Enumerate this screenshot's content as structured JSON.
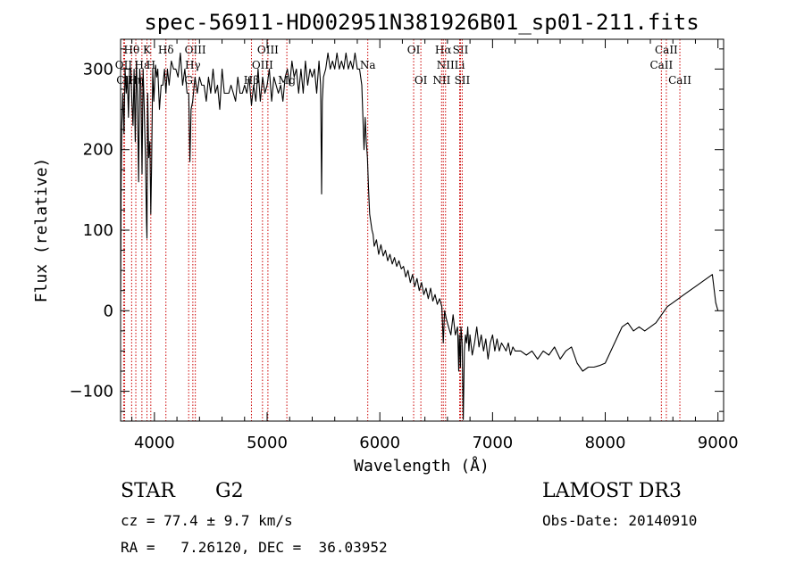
{
  "chart_data": {
    "type": "line",
    "title": "spec-56911-HD002951N381926B01_sp01-211.fits",
    "xlabel": "Wavelength (Å)",
    "ylabel": "Flux (relative)",
    "xlim": [
      3700,
      9050
    ],
    "ylim": [
      -137,
      337
    ],
    "xticks": [
      4000,
      5000,
      6000,
      7000,
      8000,
      9000
    ],
    "yticks": [
      -100,
      0,
      100,
      200,
      300
    ],
    "grid": false,
    "legend": "none",
    "series": [
      {
        "x": [
          3700,
          3705,
          3710,
          3720,
          3730,
          3740,
          3750,
          3760,
          3770,
          3780,
          3790,
          3800,
          3810,
          3820,
          3830,
          3840,
          3850,
          3860,
          3870,
          3880,
          3890,
          3900,
          3910,
          3920,
          3930,
          3934,
          3940,
          3950,
          3960,
          3968,
          3975,
          3985,
          3995,
          4010,
          4020,
          4030,
          4045,
          4060,
          4075,
          4090,
          4102,
          4115,
          4130,
          4150,
          4170,
          4190,
          4210,
          4230,
          4250,
          4270,
          4290,
          4305,
          4315,
          4325,
          4340,
          4360,
          4380,
          4400,
          4420,
          4440,
          4460,
          4480,
          4500,
          4520,
          4540,
          4560,
          4580,
          4600,
          4620,
          4640,
          4660,
          4680,
          4700,
          4720,
          4740,
          4760,
          4780,
          4800,
          4820,
          4840,
          4861,
          4880,
          4900,
          4920,
          4940,
          4960,
          4980,
          5000,
          5020,
          5040,
          5060,
          5080,
          5100,
          5120,
          5140,
          5160,
          5180,
          5200,
          5220,
          5240,
          5260,
          5280,
          5300,
          5320,
          5340,
          5360,
          5380,
          5400,
          5420,
          5440,
          5460,
          5475,
          5483,
          5490,
          5500,
          5520,
          5540,
          5560,
          5580,
          5600,
          5620,
          5640,
          5660,
          5680,
          5700,
          5720,
          5740,
          5760,
          5780,
          5800,
          5820,
          5840,
          5860,
          5870,
          5880,
          5890,
          5900,
          5910,
          5920,
          5930,
          5940,
          5950,
          5970,
          5990,
          6010,
          6030,
          6050,
          6070,
          6090,
          6110,
          6130,
          6150,
          6170,
          6190,
          6210,
          6230,
          6250,
          6270,
          6290,
          6310,
          6330,
          6350,
          6370,
          6390,
          6410,
          6430,
          6450,
          6470,
          6490,
          6510,
          6530,
          6550,
          6563,
          6575,
          6590,
          6610,
          6630,
          6650,
          6670,
          6690,
          6700,
          6705,
          6710,
          6715,
          6720,
          6730,
          6740,
          6750,
          6760,
          6770,
          6780,
          6790,
          6800,
          6820,
          6840,
          6860,
          6880,
          6900,
          6920,
          6940,
          6960,
          6980,
          7000,
          7020,
          7040,
          7060,
          7080,
          7100,
          7120,
          7140,
          7160,
          7180,
          7200,
          7250,
          7300,
          7350,
          7400,
          7450,
          7500,
          7550,
          7600,
          7650,
          7700,
          7750,
          7800,
          7850,
          7900,
          7950,
          8000,
          8050,
          8100,
          8150,
          8200,
          8250,
          8300,
          8350,
          8400,
          8450,
          8500,
          8550,
          8600,
          8650,
          8700,
          8750,
          8800,
          8850,
          8900,
          8950,
          8980,
          9000
        ],
        "y": [
          0,
          160,
          230,
          270,
          220,
          300,
          270,
          290,
          240,
          300,
          300,
          260,
          230,
          300,
          210,
          310,
          260,
          160,
          300,
          280,
          170,
          300,
          250,
          190,
          110,
          90,
          270,
          190,
          210,
          120,
          180,
          300,
          260,
          305,
          290,
          300,
          250,
          280,
          280,
          300,
          270,
          300,
          280,
          310,
          300,
          300,
          290,
          320,
          280,
          300,
          270,
          270,
          185,
          250,
          260,
          290,
          270,
          290,
          280,
          280,
          260,
          290,
          270,
          300,
          270,
          280,
          250,
          300,
          270,
          270,
          270,
          280,
          270,
          260,
          290,
          270,
          270,
          280,
          270,
          290,
          255,
          280,
          260,
          300,
          260,
          290,
          270,
          280,
          300,
          260,
          290,
          280,
          270,
          280,
          260,
          290,
          300,
          280,
          310,
          290,
          300,
          270,
          300,
          270,
          310,
          280,
          300,
          290,
          300,
          270,
          310,
          280,
          145,
          260,
          290,
          300,
          320,
          300,
          310,
          300,
          320,
          300,
          310,
          300,
          320,
          300,
          310,
          300,
          320,
          300,
          300,
          280,
          200,
          240,
          210,
          190,
          150,
          120,
          110,
          100,
          95,
          80,
          88,
          70,
          82,
          68,
          75,
          62,
          70,
          58,
          66,
          55,
          62,
          52,
          55,
          42,
          50,
          35,
          45,
          30,
          40,
          25,
          35,
          20,
          28,
          15,
          28,
          12,
          20,
          8,
          15,
          5,
          -40,
          0,
          -10,
          -20,
          -30,
          -5,
          -30,
          -20,
          -75,
          -30,
          -50,
          -70,
          -20,
          -40,
          -135,
          -50,
          -30,
          -40,
          -20,
          -50,
          -30,
          -55,
          -40,
          -20,
          -45,
          -30,
          -50,
          -35,
          -60,
          -40,
          -30,
          -50,
          -35,
          -50,
          -40,
          -45,
          -50,
          -40,
          -55,
          -45,
          -50,
          -50,
          -55,
          -50,
          -60,
          -50,
          -55,
          -45,
          -60,
          -50,
          -45,
          -65,
          -75,
          -70,
          -70,
          -68,
          -65,
          -50,
          -35,
          -20,
          -15,
          -25,
          -20,
          -25,
          -20,
          -15,
          -5,
          5,
          10,
          15,
          20,
          25,
          30,
          35,
          40,
          45,
          10,
          0
        ]
      }
    ],
    "lines": [
      {
        "label": "Hθ",
        "x": 3798,
        "row": 0
      },
      {
        "label": "OII",
        "x": 3727,
        "row": 1
      },
      {
        "label": "CII",
        "x": 3736,
        "row": 2
      },
      {
        "label": "Hε",
        "x": 3889,
        "row": 1
      },
      {
        "label": "Hη",
        "x": 3835,
        "row": 2
      },
      {
        "label": "K",
        "x": 3934,
        "row": 0
      },
      {
        "label": "H",
        "x": 3968,
        "row": 1
      },
      {
        "label": "Hδ",
        "x": 4102,
        "row": 0
      },
      {
        "label": "OIII",
        "x": 4363,
        "row": 0
      },
      {
        "label": "Hγ",
        "x": 4341,
        "row": 1
      },
      {
        "label": "G",
        "x": 4304,
        "row": 2
      },
      {
        "label": "OIII",
        "x": 5007,
        "row": 0
      },
      {
        "label": "OIII",
        "x": 4959,
        "row": 1
      },
      {
        "label": "Hβ",
        "x": 4861,
        "row": 2
      },
      {
        "label": "Mg",
        "x": 5175,
        "row": 2
      },
      {
        "label": "Na",
        "x": 5893,
        "row": 1
      },
      {
        "label": "OI",
        "x": 6300,
        "row": 0
      },
      {
        "label": "OI",
        "x": 6364,
        "row": 2
      },
      {
        "label": "Hα",
        "x": 6563,
        "row": 0
      },
      {
        "label": "NII",
        "x": 6583,
        "row": 1
      },
      {
        "label": "NII",
        "x": 6548,
        "row": 2
      },
      {
        "label": "SII",
        "x": 6716,
        "row": 0
      },
      {
        "label": "Li",
        "x": 6708,
        "row": 1
      },
      {
        "label": "SII",
        "x": 6731,
        "row": 2
      },
      {
        "label": "CaII",
        "x": 8542,
        "row": 0
      },
      {
        "label": "CaII",
        "x": 8498,
        "row": 1
      },
      {
        "label": "CaII",
        "x": 8662,
        "row": 2
      }
    ]
  },
  "info": {
    "class": "STAR",
    "subclass": "G2",
    "survey": "LAMOST DR3",
    "cz": "cz = 77.4 ± 9.7 km/s",
    "obs_date": "Obs-Date: 20140910",
    "radec": "RA =   7.26120, DEC =  36.03952"
  },
  "colors": {
    "spectrum": "#000000",
    "line_markers": "#cc0000",
    "axes": "#000000"
  }
}
